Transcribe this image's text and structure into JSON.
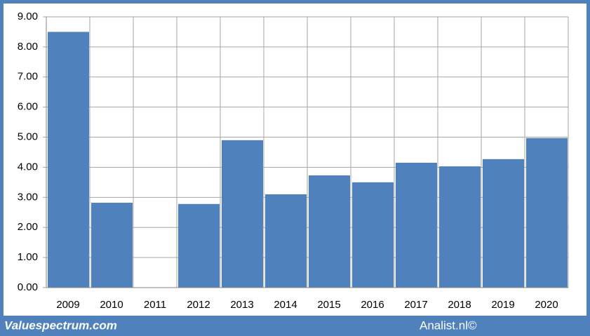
{
  "chart_data": {
    "type": "bar",
    "categories": [
      "2009",
      "2010",
      "2011",
      "2012",
      "2013",
      "2014",
      "2015",
      "2016",
      "2017",
      "2018",
      "2019",
      "2020"
    ],
    "values": [
      8.5,
      2.82,
      0,
      2.78,
      4.9,
      3.1,
      3.73,
      3.5,
      4.15,
      4.03,
      4.27,
      4.97
    ],
    "color": "#4f81bd",
    "ylim": [
      0,
      9
    ],
    "yticks": [
      {
        "value": 0,
        "label": "0.00"
      },
      {
        "value": 1,
        "label": "1.00"
      },
      {
        "value": 2,
        "label": "2.00"
      },
      {
        "value": 3,
        "label": "3.00"
      },
      {
        "value": 4,
        "label": "4.00"
      },
      {
        "value": 5,
        "label": "5.00"
      },
      {
        "value": 6,
        "label": "6.00"
      },
      {
        "value": 7,
        "label": "7.00"
      },
      {
        "value": 8,
        "label": "8.00"
      },
      {
        "value": 9,
        "label": "9.00"
      }
    ],
    "grid": true,
    "watermark": "Valuespectrum.com",
    "source": "Analist.nl©"
  }
}
